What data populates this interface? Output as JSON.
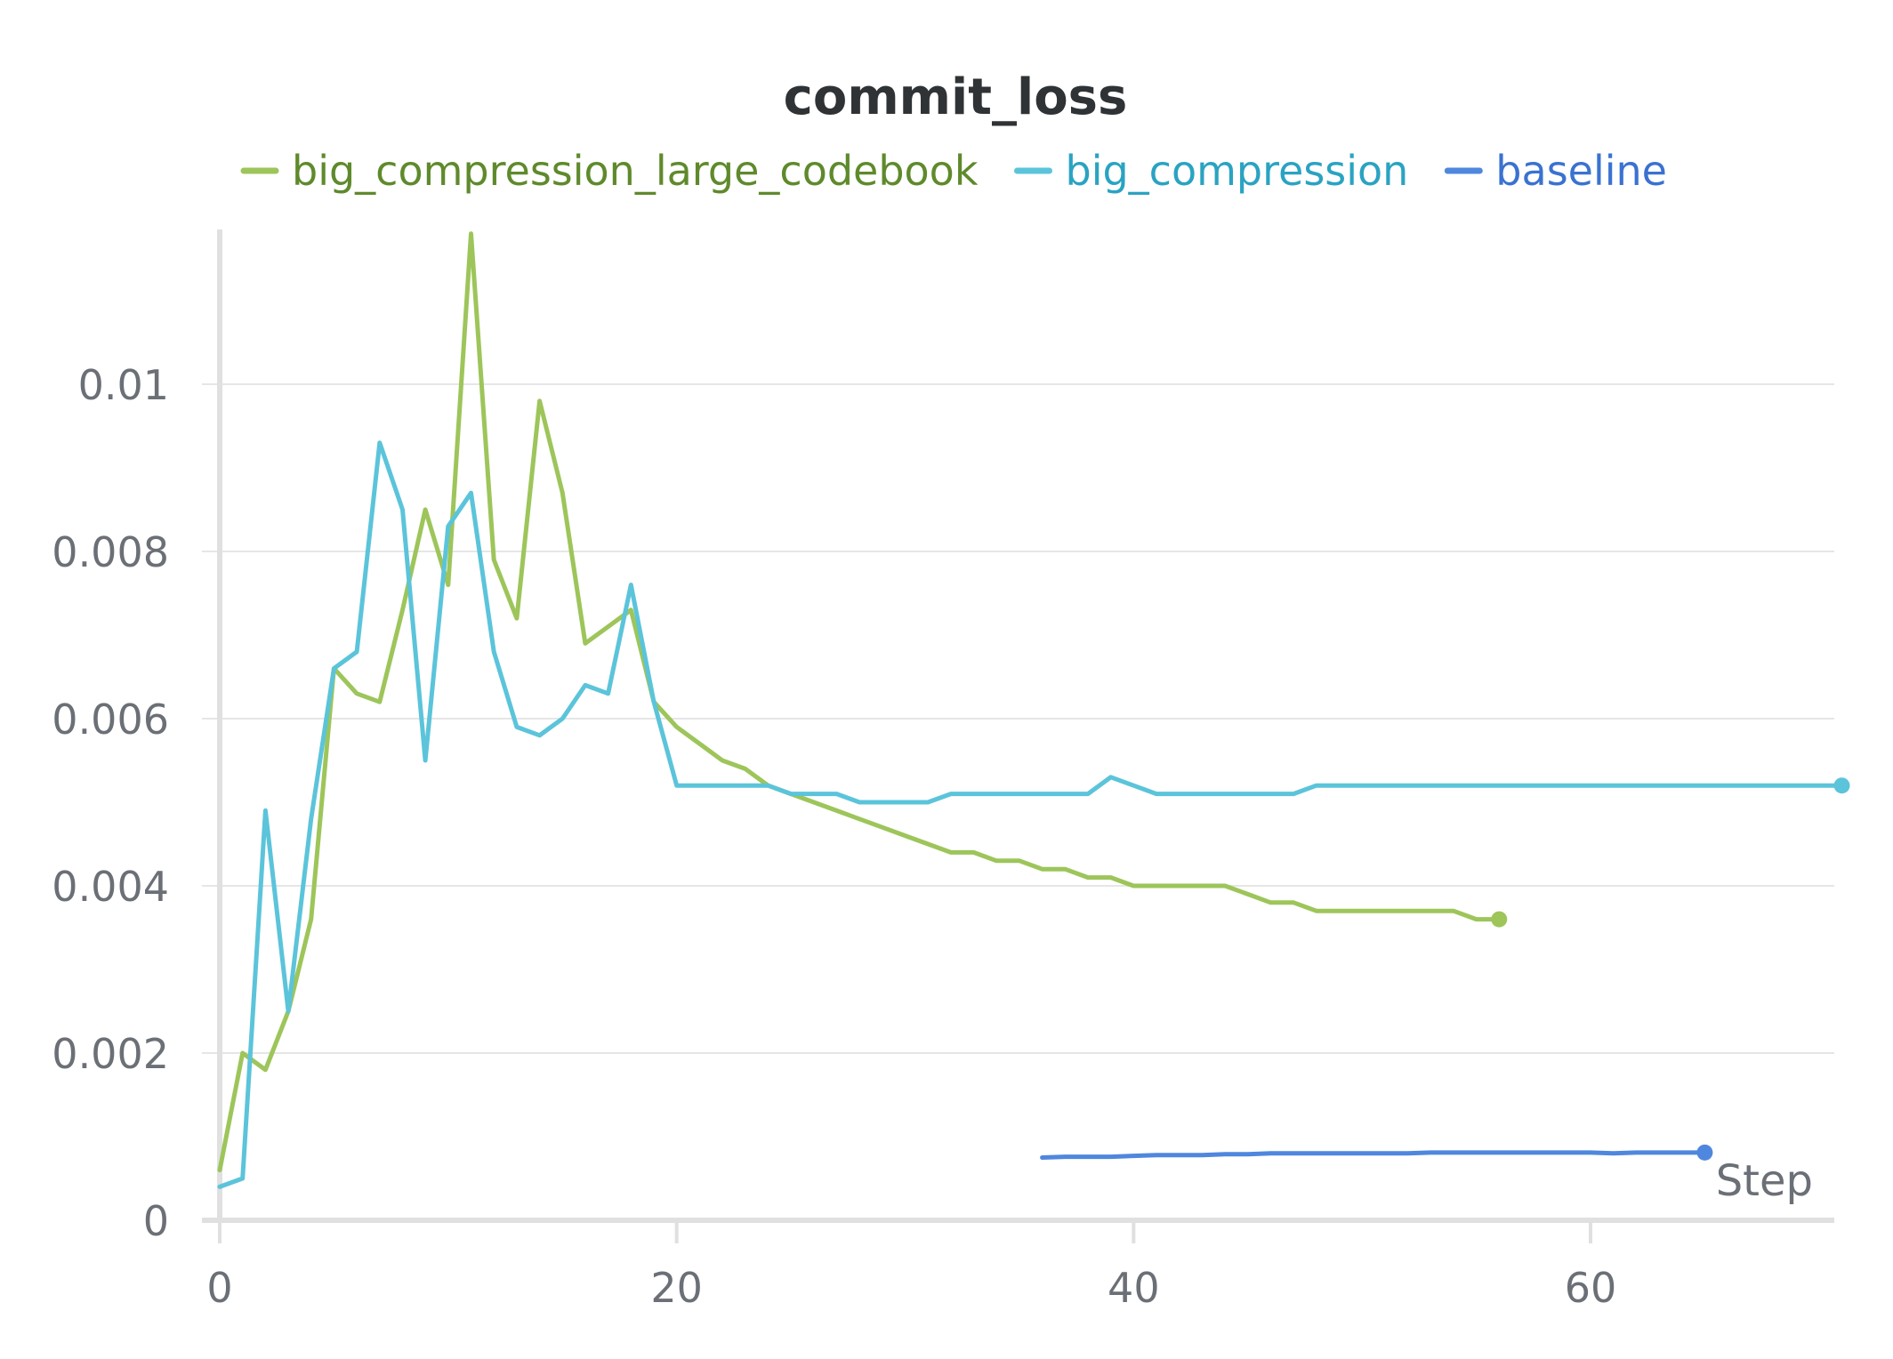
{
  "chart_data": {
    "type": "line",
    "title": "commit_loss",
    "xlabel": "Step",
    "ylabel": "",
    "xlim": [
      0,
      71
    ],
    "ylim": [
      0,
      0.0118
    ],
    "x_ticks": [
      0,
      20,
      40,
      60
    ],
    "x_tick_labels": [
      "0",
      "20",
      "40",
      "60"
    ],
    "y_ticks": [
      0,
      0.002,
      0.004,
      0.006,
      0.008,
      0.01
    ],
    "y_tick_labels": [
      "0",
      "0.002",
      "0.004",
      "0.006",
      "0.008",
      "0.01"
    ],
    "grid": true,
    "legend_position": "top",
    "series": [
      {
        "name": "big_compression_large_codebook",
        "color": "#9dc55a",
        "text_color": "#5f8a2c",
        "end_marker": true,
        "x": [
          0,
          1,
          2,
          3,
          4,
          5,
          6,
          7,
          8,
          9,
          10,
          11,
          12,
          13,
          14,
          15,
          16,
          17,
          18,
          19,
          20,
          21,
          22,
          23,
          24,
          25,
          26,
          27,
          28,
          29,
          30,
          31,
          32,
          33,
          34,
          35,
          36,
          37,
          38,
          39,
          40,
          41,
          42,
          43,
          44,
          45,
          46,
          47,
          48,
          49,
          50,
          51,
          52,
          53,
          54,
          55,
          56
        ],
        "y": [
          0.0006,
          0.002,
          0.0018,
          0.0025,
          0.0036,
          0.0066,
          0.0063,
          0.0062,
          0.0073,
          0.0085,
          0.0076,
          0.0118,
          0.0079,
          0.0072,
          0.0098,
          0.0087,
          0.0069,
          0.0071,
          0.0073,
          0.0062,
          0.0059,
          0.0057,
          0.0055,
          0.0054,
          0.0052,
          0.0051,
          0.005,
          0.0049,
          0.0048,
          0.0047,
          0.0046,
          0.0045,
          0.0044,
          0.0044,
          0.0043,
          0.0043,
          0.0042,
          0.0042,
          0.0041,
          0.0041,
          0.004,
          0.004,
          0.004,
          0.004,
          0.004,
          0.0039,
          0.0038,
          0.0038,
          0.0037,
          0.0037,
          0.0037,
          0.0037,
          0.0037,
          0.0037,
          0.0037,
          0.0036,
          0.0036
        ]
      },
      {
        "name": "big_compression",
        "color": "#5bc4da",
        "text_color": "#2aa3c2",
        "end_marker": true,
        "x": [
          0,
          1,
          2,
          3,
          4,
          5,
          6,
          7,
          8,
          9,
          10,
          11,
          12,
          13,
          14,
          15,
          16,
          17,
          18,
          19,
          20,
          21,
          22,
          23,
          24,
          25,
          26,
          27,
          28,
          29,
          30,
          31,
          32,
          33,
          34,
          35,
          36,
          37,
          38,
          39,
          40,
          41,
          42,
          43,
          44,
          45,
          46,
          47,
          48,
          49,
          50,
          51,
          52,
          53,
          54,
          55,
          56,
          57,
          58,
          59,
          60,
          61,
          62,
          63,
          64,
          65,
          66,
          67,
          68,
          69,
          70,
          71
        ],
        "y": [
          0.0004,
          0.0005,
          0.0049,
          0.0025,
          0.0048,
          0.0066,
          0.0068,
          0.0093,
          0.0085,
          0.0055,
          0.0083,
          0.0087,
          0.0068,
          0.0059,
          0.0058,
          0.006,
          0.0064,
          0.0063,
          0.0076,
          0.0062,
          0.0052,
          0.0052,
          0.0052,
          0.0052,
          0.0052,
          0.0051,
          0.0051,
          0.0051,
          0.005,
          0.005,
          0.005,
          0.005,
          0.0051,
          0.0051,
          0.0051,
          0.0051,
          0.0051,
          0.0051,
          0.0051,
          0.0053,
          0.0052,
          0.0051,
          0.0051,
          0.0051,
          0.0051,
          0.0051,
          0.0051,
          0.0051,
          0.0052,
          0.0052,
          0.0052,
          0.0052,
          0.0052,
          0.0052,
          0.0052,
          0.0052,
          0.0052,
          0.0052,
          0.0052,
          0.0052,
          0.0052,
          0.0052,
          0.0052,
          0.0052,
          0.0052,
          0.0052,
          0.0052,
          0.0052,
          0.0052,
          0.0052,
          0.0052,
          0.0052
        ]
      },
      {
        "name": "baseline",
        "color": "#5087de",
        "text_color": "#3a72d0",
        "end_marker": true,
        "x": [
          36,
          37,
          38,
          39,
          40,
          41,
          42,
          43,
          44,
          45,
          46,
          47,
          48,
          49,
          50,
          51,
          52,
          53,
          54,
          55,
          56,
          57,
          58,
          59,
          60,
          61,
          62,
          63,
          64,
          65
        ],
        "y": [
          0.00075,
          0.00076,
          0.00076,
          0.00076,
          0.00077,
          0.00078,
          0.00078,
          0.00078,
          0.00079,
          0.00079,
          0.0008,
          0.0008,
          0.0008,
          0.0008,
          0.0008,
          0.0008,
          0.0008,
          0.00081,
          0.00081,
          0.00081,
          0.00081,
          0.00081,
          0.00081,
          0.00081,
          0.00081,
          0.0008,
          0.00081,
          0.00081,
          0.00081,
          0.00081
        ]
      }
    ]
  }
}
